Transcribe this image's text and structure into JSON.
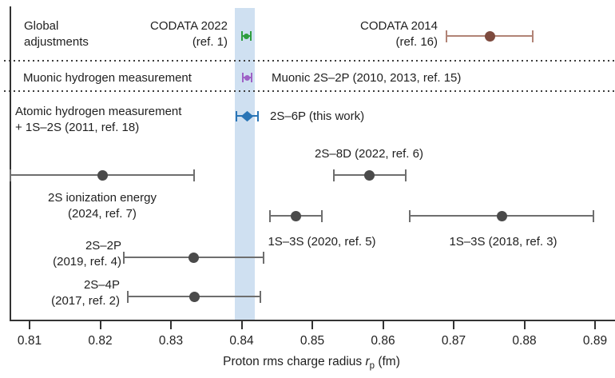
{
  "figure": {
    "background": "#ffffff",
    "text_color": "#1f1f1f",
    "axis_color": "#333333"
  },
  "labels": {
    "global_adjustments": "Global\nadjustments",
    "muonic_section": "Muonic hydrogen measurement",
    "atomic_section": "Atomic hydrogen measurement\n+ 1S–2S (2011, ref. 18)",
    "codata_2022": "CODATA 2022\n(ref. 1)",
    "codata_2014": "CODATA 2014\n(ref. 16)",
    "muonic_point": "Muonic 2S–2P (2010, 2013, ref. 15)",
    "this_work": "2S–6P (this work)",
    "ion_2s": "2S ionization energy\n(2024, ref. 7)",
    "d8_2s": "2S–8D (2022, ref. 6)",
    "s3_2020": "1S–3S (2020, ref. 5)",
    "s3_2018": "1S–3S (2018, ref. 3)",
    "p2_2s": "2S–2P\n(2019, ref. 4)",
    "p4_2s": "2S–4P\n(2017, ref. 2)"
  },
  "axis": {
    "title_prefix": "Proton rms charge radius ",
    "title_symbol": "r",
    "title_sub": "p",
    "title_suffix": " (fm)"
  },
  "chart_data": {
    "type": "scatter",
    "orientation": "horizontal-error-bars",
    "title": "",
    "xlabel": "Proton rms charge radius r_p (fm)",
    "ylabel": "",
    "xlim": [
      0.806,
      0.893
    ],
    "xticks": [
      0.81,
      0.82,
      0.83,
      0.84,
      0.85,
      0.86,
      0.87,
      0.88,
      0.89
    ],
    "grid": false,
    "highlight_band": {
      "x_min": 0.839,
      "x_max": 0.8419,
      "color": "#cfe0f1"
    },
    "sections": [
      {
        "label": "Global adjustments",
        "rows": [
          1
        ]
      },
      {
        "label": "Muonic hydrogen measurement",
        "rows": [
          2
        ]
      },
      {
        "label": "Atomic hydrogen measurement + 1S–2S (2011, ref. 18)",
        "rows": [
          3,
          4,
          5,
          6,
          7
        ]
      }
    ],
    "row_y": {
      "1": 45,
      "2": 97,
      "3": 145,
      "4": 219,
      "5": 270,
      "6": 322,
      "7": 371
    },
    "palette": {
      "green": {
        "line": "#2f9e3f",
        "dot": "#2f9e3f"
      },
      "purple": {
        "line": "#9e62c6",
        "dot": "#9e62c6"
      },
      "blue": {
        "line": "#2a75b6",
        "dot": "#2a75b6"
      },
      "brick": {
        "line": "#b18376",
        "dot": "#7d4a3e"
      },
      "gray": {
        "line": "#6e6e6e",
        "dot": "#4a4a4a"
      }
    },
    "points": [
      {
        "name": "codata-2022",
        "label": "CODATA 2022 (ref. 1)",
        "value": 0.8407,
        "error": 0.0006,
        "row": 1,
        "color": "green",
        "style": "tiny"
      },
      {
        "name": "codata-2014",
        "label": "CODATA 2014 (ref. 16)",
        "value": 0.8751,
        "error": 0.0061,
        "row": 1,
        "color": "brick",
        "style": "large"
      },
      {
        "name": "muonic-2s2p",
        "label": "Muonic 2S–2P (2010, 2013, ref. 15)",
        "value": 0.8408,
        "error": 0.0006,
        "row": 2,
        "color": "purple",
        "style": "tiny"
      },
      {
        "name": "this-work-2s6p",
        "label": "2S–6P (this work)",
        "value": 0.8408,
        "error": 0.0015,
        "row": 3,
        "color": "blue",
        "style": "diamond"
      },
      {
        "name": "2s-ionization-2024",
        "label": "2S ionization energy (2024, ref. 7)",
        "value": 0.8203,
        "error": 0.013,
        "row": 4,
        "color": "gray",
        "style": "large"
      },
      {
        "name": "2s8d-2022",
        "label": "2S–8D (2022, ref. 6)",
        "value": 0.8581,
        "error": 0.0051,
        "row": 4,
        "color": "gray",
        "style": "large"
      },
      {
        "name": "1s3s-2020",
        "label": "1S–3S (2020, ref. 5)",
        "value": 0.8477,
        "error": 0.0037,
        "row": 5,
        "color": "gray",
        "style": "large"
      },
      {
        "name": "1s3s-2018",
        "label": "1S–3S (2018, ref. 3)",
        "value": 0.8768,
        "error": 0.013,
        "row": 5,
        "color": "gray",
        "style": "large"
      },
      {
        "name": "2s2p-2019",
        "label": "2S–2P (2019, ref. 4)",
        "value": 0.8332,
        "error": 0.0099,
        "row": 6,
        "color": "gray",
        "style": "large"
      },
      {
        "name": "2s4p-2017",
        "label": "2S–4P (2017, ref. 2)",
        "value": 0.8333,
        "error": 0.0094,
        "row": 7,
        "color": "gray",
        "style": "large"
      }
    ]
  }
}
